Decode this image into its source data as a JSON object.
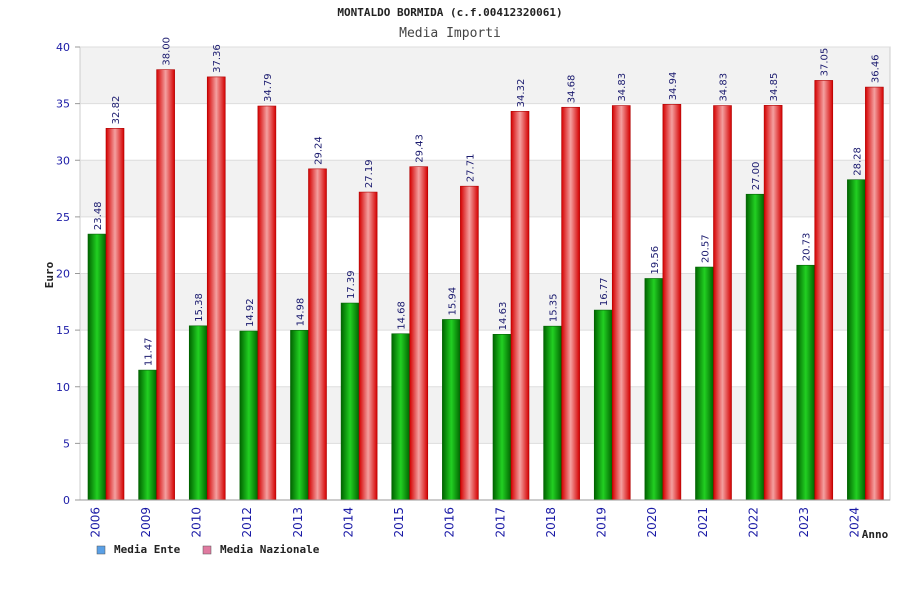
{
  "chart_data": {
    "type": "bar",
    "title": "MONTALDO BORMIDA (c.f.00412320061)",
    "subtitle": "Media Importi",
    "xlabel": "Anno",
    "ylabel": "Euro",
    "ylim": [
      0,
      40
    ],
    "yticks": [
      0,
      5,
      10,
      15,
      20,
      25,
      30,
      35,
      40
    ],
    "yticks_text": [
      "0",
      "5",
      "10",
      "15",
      "20",
      "25",
      "30",
      "35",
      "40"
    ],
    "categories": [
      "2006",
      "2009",
      "2010",
      "2012",
      "2013",
      "2014",
      "2015",
      "2016",
      "2017",
      "2018",
      "2019",
      "2020",
      "2021",
      "2022",
      "2023",
      "2024"
    ],
    "series": [
      {
        "name": "Media Ente",
        "color": "#00b000",
        "values": [
          23.48,
          11.47,
          15.38,
          14.92,
          14.98,
          17.39,
          14.68,
          15.94,
          14.63,
          15.35,
          16.77,
          19.56,
          20.57,
          27.0,
          20.73,
          28.28
        ],
        "labels": [
          "23.48",
          "11.47",
          "15.38",
          "14.92",
          "14.98",
          "17.39",
          "14.68",
          "15.94",
          "14.63",
          "15.35",
          "16.77",
          "19.56",
          "20.57",
          "27.00",
          "20.73",
          "28.28"
        ]
      },
      {
        "name": "Media Nazionale",
        "color": "#e00000",
        "values": [
          32.82,
          38.0,
          37.36,
          34.79,
          29.24,
          27.19,
          29.43,
          27.71,
          34.32,
          34.68,
          34.83,
          34.94,
          34.83,
          34.85,
          37.05,
          36.46
        ],
        "labels": [
          "32.82",
          "38.00",
          "37.36",
          "34.79",
          "29.24",
          "27.19",
          "29.43",
          "27.71",
          "34.32",
          "34.68",
          "34.83",
          "34.94",
          "34.83",
          "34.85",
          "37.05",
          "36.46"
        ]
      }
    ],
    "legend": [
      {
        "name": "Media Ente",
        "swatch_color": "#5aa0e6"
      },
      {
        "name": "Media Nazionale",
        "swatch_color": "#e07aa0"
      }
    ],
    "grid": true,
    "legend_position": "bottom-left"
  }
}
